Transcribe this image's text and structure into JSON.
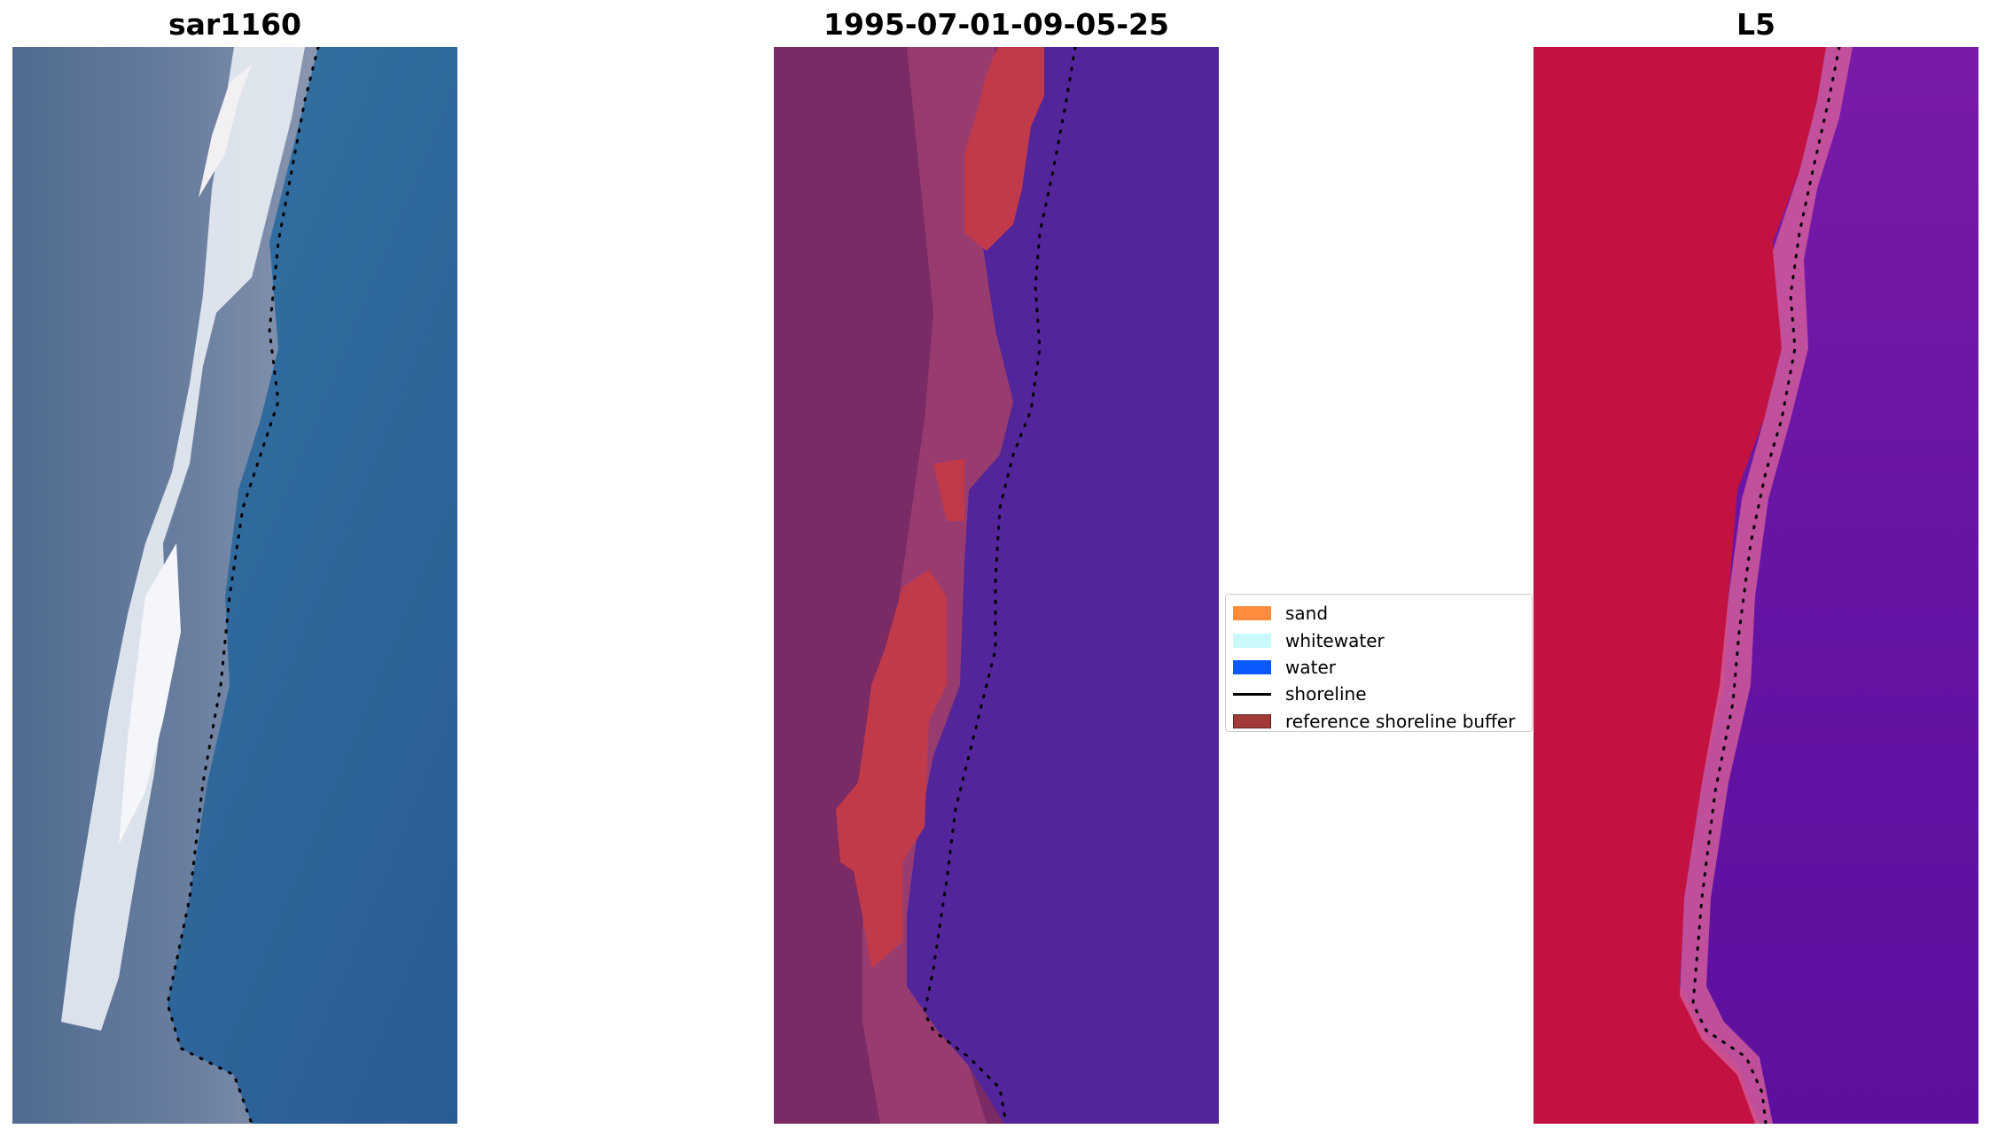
{
  "panels": [
    {
      "title": "sar1160",
      "type": "rgb"
    },
    {
      "title": "1995-07-01-09-05-25",
      "type": "classified"
    },
    {
      "title": "L5",
      "type": "index"
    }
  ],
  "legend": {
    "items": [
      {
        "label": "sand",
        "color": "#ff8c3a",
        "kind": "patch"
      },
      {
        "label": "whitewater",
        "color": "#c8fafa",
        "kind": "patch"
      },
      {
        "label": "water",
        "color": "#0a5aff",
        "kind": "patch"
      },
      {
        "label": "shoreline",
        "color": "#000000",
        "kind": "line"
      },
      {
        "label": "reference shoreline buffer",
        "color": "#a33a3a",
        "kind": "patch"
      }
    ]
  },
  "colors": {
    "rgb_water": "#2f6fa1",
    "rgb_land": "#5b7394",
    "rgb_sand": "#e9eef4",
    "classified_water": "#53259a",
    "classified_land": "#7a2a64",
    "classified_sand_buffer": "#c13a4a",
    "index_land": "#c3123f",
    "index_water": "#6a17a3",
    "shoreline": "#000000"
  }
}
